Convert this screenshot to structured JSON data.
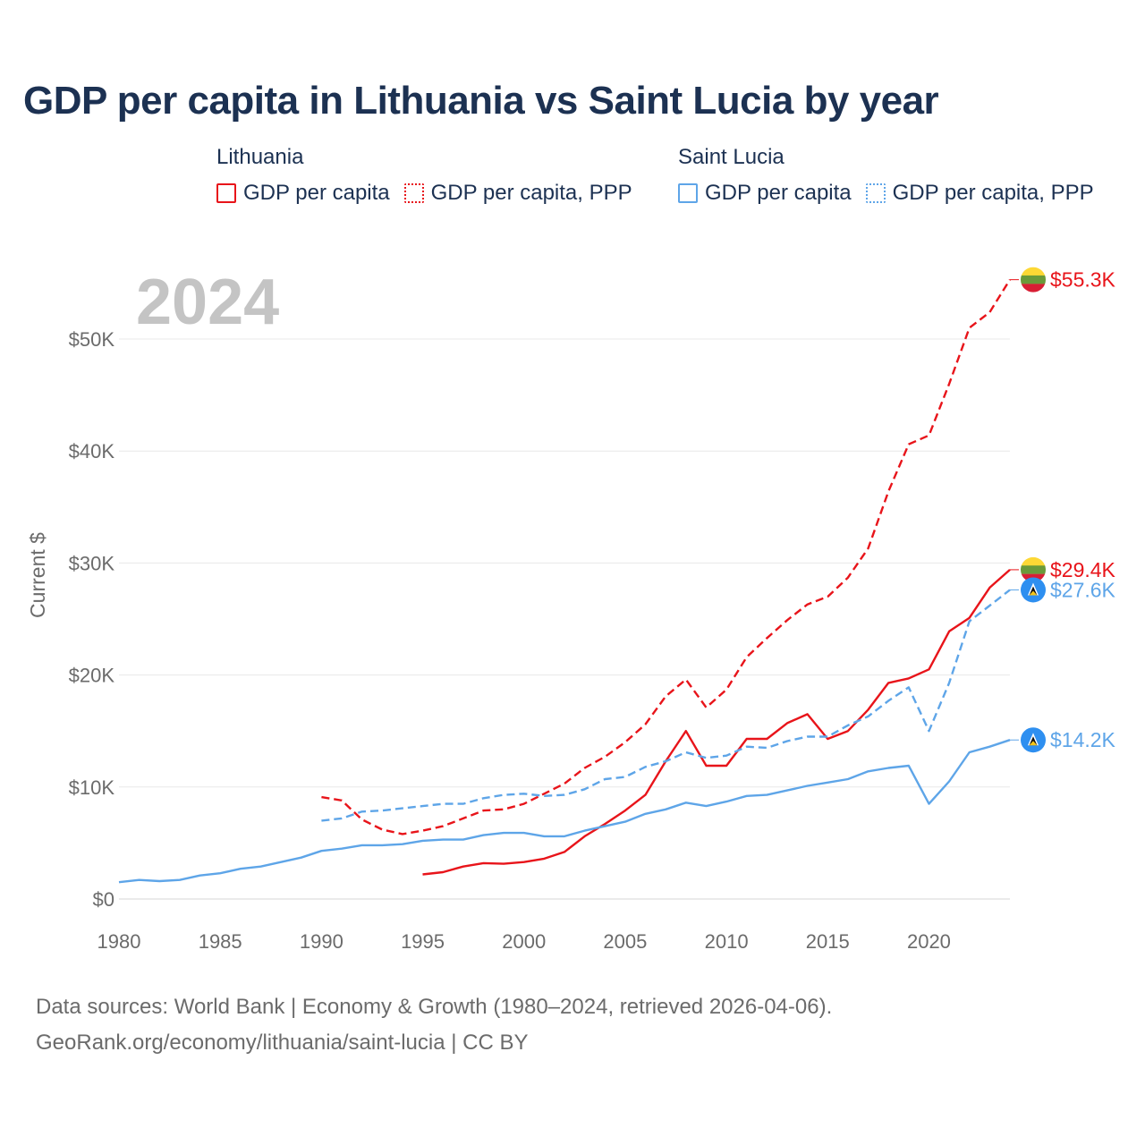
{
  "title": "GDP per capita in Lithuania vs Saint Lucia by year",
  "legend": {
    "groups": [
      {
        "country": "Lithuania",
        "items": [
          {
            "label": "GDP per capita",
            "style": "solid",
            "color": "#e8141a"
          },
          {
            "label": "GDP per capita, PPP",
            "style": "dotted",
            "color": "#e8141a"
          }
        ]
      },
      {
        "country": "Saint Lucia",
        "items": [
          {
            "label": "GDP per capita",
            "style": "solid",
            "color": "#5ea5e8"
          },
          {
            "label": "GDP per capita, PPP",
            "style": "dotted",
            "color": "#5ea5e8"
          }
        ]
      }
    ]
  },
  "year_watermark": "2024",
  "footer": {
    "line1": "Data sources: World Bank | Economy & Growth (1980–2024, retrieved 2026-04-06).",
    "line2": "GeoRank.org/economy/lithuania/saint-lucia | CC BY"
  },
  "chart_data": {
    "type": "line",
    "title": "GDP per capita in Lithuania vs Saint Lucia by year",
    "xlabel": "",
    "ylabel": "Current $",
    "xlim": [
      1980,
      2024
    ],
    "ylim": [
      0,
      55000
    ],
    "x_ticks": [
      1980,
      1985,
      1990,
      1995,
      2000,
      2005,
      2010,
      2015,
      2020
    ],
    "y_ticks": [
      {
        "value": 0,
        "label": "$0"
      },
      {
        "value": 10000,
        "label": "$10K"
      },
      {
        "value": 20000,
        "label": "$20K"
      },
      {
        "value": 30000,
        "label": "$30K"
      },
      {
        "value": 40000,
        "label": "$40K"
      },
      {
        "value": 50000,
        "label": "$50K"
      }
    ],
    "grid": true,
    "series": [
      {
        "name": "Lithuania GDP per capita, PPP",
        "country": "Lithuania",
        "color": "#e8141a",
        "dashed": true,
        "end_label": "$55.3K",
        "points": [
          [
            1990,
            9100
          ],
          [
            1991,
            8800
          ],
          [
            1992,
            7100
          ],
          [
            1993,
            6200
          ],
          [
            1994,
            5800
          ],
          [
            1995,
            6100
          ],
          [
            1996,
            6500
          ],
          [
            1997,
            7200
          ],
          [
            1998,
            7900
          ],
          [
            1999,
            8000
          ],
          [
            2000,
            8500
          ],
          [
            2001,
            9400
          ],
          [
            2002,
            10300
          ],
          [
            2003,
            11700
          ],
          [
            2004,
            12700
          ],
          [
            2005,
            14000
          ],
          [
            2006,
            15600
          ],
          [
            2007,
            18100
          ],
          [
            2008,
            19600
          ],
          [
            2009,
            17100
          ],
          [
            2010,
            18700
          ],
          [
            2011,
            21600
          ],
          [
            2012,
            23300
          ],
          [
            2013,
            24900
          ],
          [
            2014,
            26300
          ],
          [
            2015,
            27000
          ],
          [
            2016,
            28700
          ],
          [
            2017,
            31300
          ],
          [
            2018,
            36400
          ],
          [
            2019,
            40600
          ],
          [
            2020,
            41400
          ],
          [
            2021,
            46000
          ],
          [
            2022,
            51000
          ],
          [
            2023,
            52400
          ],
          [
            2024,
            55300
          ]
        ]
      },
      {
        "name": "Lithuania GDP per capita",
        "country": "Lithuania",
        "color": "#e8141a",
        "dashed": false,
        "end_label": "$29.4K",
        "points": [
          [
            1995,
            2200
          ],
          [
            1996,
            2400
          ],
          [
            1997,
            2900
          ],
          [
            1998,
            3200
          ],
          [
            1999,
            3150
          ],
          [
            2000,
            3300
          ],
          [
            2001,
            3600
          ],
          [
            2002,
            4200
          ],
          [
            2003,
            5600
          ],
          [
            2004,
            6700
          ],
          [
            2005,
            7900
          ],
          [
            2006,
            9300
          ],
          [
            2007,
            12300
          ],
          [
            2008,
            15000
          ],
          [
            2009,
            11900
          ],
          [
            2010,
            11900
          ],
          [
            2011,
            14300
          ],
          [
            2012,
            14300
          ],
          [
            2013,
            15700
          ],
          [
            2014,
            16500
          ],
          [
            2015,
            14300
          ],
          [
            2016,
            15000
          ],
          [
            2017,
            16900
          ],
          [
            2018,
            19300
          ],
          [
            2019,
            19700
          ],
          [
            2020,
            20500
          ],
          [
            2021,
            23900
          ],
          [
            2022,
            25100
          ],
          [
            2023,
            27800
          ],
          [
            2024,
            29400
          ]
        ]
      },
      {
        "name": "Saint Lucia GDP per capita, PPP",
        "country": "Saint Lucia",
        "color": "#5ea5e8",
        "dashed": true,
        "end_label": "$27.6K",
        "points": [
          [
            1990,
            7000
          ],
          [
            1991,
            7200
          ],
          [
            1992,
            7800
          ],
          [
            1993,
            7900
          ],
          [
            1994,
            8100
          ],
          [
            1995,
            8300
          ],
          [
            1996,
            8500
          ],
          [
            1997,
            8500
          ],
          [
            1998,
            9000
          ],
          [
            1999,
            9300
          ],
          [
            2000,
            9400
          ],
          [
            2001,
            9200
          ],
          [
            2002,
            9300
          ],
          [
            2003,
            9800
          ],
          [
            2004,
            10700
          ],
          [
            2005,
            10900
          ],
          [
            2006,
            11800
          ],
          [
            2007,
            12300
          ],
          [
            2008,
            13100
          ],
          [
            2009,
            12600
          ],
          [
            2010,
            12800
          ],
          [
            2011,
            13600
          ],
          [
            2012,
            13500
          ],
          [
            2013,
            14100
          ],
          [
            2014,
            14500
          ],
          [
            2015,
            14500
          ],
          [
            2016,
            15500
          ],
          [
            2017,
            16300
          ],
          [
            2018,
            17700
          ],
          [
            2019,
            18900
          ],
          [
            2020,
            15000
          ],
          [
            2021,
            19300
          ],
          [
            2022,
            24800
          ],
          [
            2023,
            26200
          ],
          [
            2024,
            27600
          ]
        ]
      },
      {
        "name": "Saint Lucia GDP per capita",
        "country": "Saint Lucia",
        "color": "#5ea5e8",
        "dashed": false,
        "end_label": "$14.2K",
        "points": [
          [
            1980,
            1500
          ],
          [
            1981,
            1700
          ],
          [
            1982,
            1600
          ],
          [
            1983,
            1700
          ],
          [
            1984,
            2100
          ],
          [
            1985,
            2300
          ],
          [
            1986,
            2700
          ],
          [
            1987,
            2900
          ],
          [
            1988,
            3300
          ],
          [
            1989,
            3700
          ],
          [
            1990,
            4300
          ],
          [
            1991,
            4500
          ],
          [
            1992,
            4800
          ],
          [
            1993,
            4800
          ],
          [
            1994,
            4900
          ],
          [
            1995,
            5200
          ],
          [
            1996,
            5300
          ],
          [
            1997,
            5300
          ],
          [
            1998,
            5700
          ],
          [
            1999,
            5900
          ],
          [
            2000,
            5900
          ],
          [
            2001,
            5600
          ],
          [
            2002,
            5600
          ],
          [
            2003,
            6100
          ],
          [
            2004,
            6500
          ],
          [
            2005,
            6900
          ],
          [
            2006,
            7600
          ],
          [
            2007,
            8000
          ],
          [
            2008,
            8600
          ],
          [
            2009,
            8300
          ],
          [
            2010,
            8700
          ],
          [
            2011,
            9200
          ],
          [
            2012,
            9300
          ],
          [
            2013,
            9700
          ],
          [
            2014,
            10100
          ],
          [
            2015,
            10400
          ],
          [
            2016,
            10700
          ],
          [
            2017,
            11400
          ],
          [
            2018,
            11700
          ],
          [
            2019,
            11900
          ],
          [
            2020,
            8500
          ],
          [
            2021,
            10500
          ],
          [
            2022,
            13100
          ],
          [
            2023,
            13600
          ],
          [
            2024,
            14200
          ]
        ]
      }
    ]
  }
}
